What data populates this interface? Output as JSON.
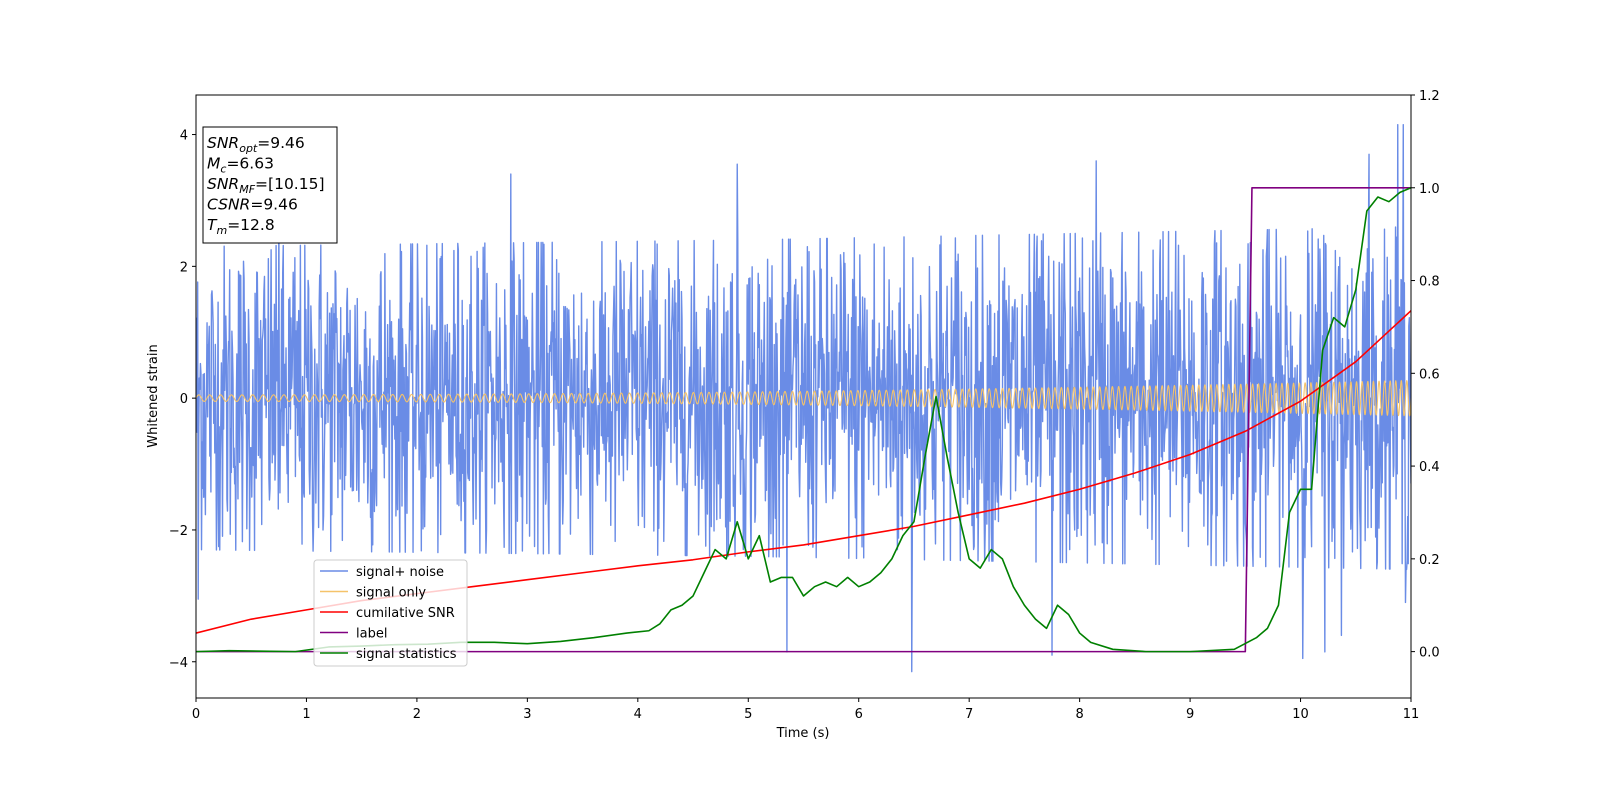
{
  "chart_data": {
    "type": "line",
    "xlabel": "Time (s)",
    "ylabel": "Whitened strain",
    "xlim": [
      0,
      11
    ],
    "ylim_left": [
      -4.55,
      4.6
    ],
    "ylim_right": [
      -0.1,
      1.2
    ],
    "x_ticks": [
      "0",
      "1",
      "2",
      "3",
      "4",
      "5",
      "6",
      "7",
      "8",
      "9",
      "10",
      "11"
    ],
    "y_ticks_left": [
      "−4",
      "−2",
      "0",
      "2",
      "4"
    ],
    "y_ticks_right": [
      "0.0",
      "0.2",
      "0.4",
      "0.6",
      "0.8",
      "1.0",
      "1.2"
    ],
    "grid": false,
    "legend_position": "lower-left",
    "info_box": [
      {
        "sym": "SNR",
        "sub": "opt",
        "val": "=9.46"
      },
      {
        "sym": "M",
        "sub": "c",
        "val": "=6.63"
      },
      {
        "sym": "SNR",
        "sub": "MF",
        "val": "=[10.15]"
      },
      {
        "sym": "CSNR",
        "sub": "",
        "val": "=9.46"
      },
      {
        "sym": "T",
        "sub": "m",
        "val": "=12.8"
      }
    ],
    "series": [
      {
        "name": "signal+ noise",
        "axis": "left",
        "color": "#6a8ce6",
        "kind": "noise",
        "x_range": [
          0,
          11
        ],
        "sample_count": 2200,
        "envelope": [
          [
            0,
            2.3
          ],
          [
            5,
            2.4
          ],
          [
            11,
            2.6
          ]
        ],
        "peaks": [
          {
            "x": 0.02,
            "y": -3.05
          },
          {
            "x": 0.75,
            "y": 3.05
          },
          {
            "x": 2.85,
            "y": 3.4
          },
          {
            "x": 4.9,
            "y": 3.55
          },
          {
            "x": 5.35,
            "y": -3.85
          },
          {
            "x": 6.48,
            "y": -4.15
          },
          {
            "x": 7.75,
            "y": -3.9
          },
          {
            "x": 8.15,
            "y": 3.6
          },
          {
            "x": 10.02,
            "y": -3.95
          },
          {
            "x": 10.22,
            "y": -3.85
          },
          {
            "x": 10.37,
            "y": -3.6
          },
          {
            "x": 10.62,
            "y": 3.7
          },
          {
            "x": 10.88,
            "y": 4.15
          },
          {
            "x": 10.93,
            "y": 4.15
          },
          {
            "x": 10.95,
            "y": -3.1
          }
        ]
      },
      {
        "name": "signal only",
        "axis": "left",
        "color": "#f5c36a",
        "kind": "chirp",
        "x_range": [
          0,
          11
        ],
        "amplitude_start": 0.05,
        "amplitude_end": 0.27,
        "frequency_start_hz": 10,
        "frequency_end_hz": 15
      },
      {
        "name": "cumilative SNR",
        "axis": "right",
        "color": "#ff0000",
        "x": [
          0,
          0.5,
          1,
          1.5,
          2,
          2.5,
          3,
          3.5,
          4,
          4.5,
          5,
          5.5,
          6,
          6.5,
          7,
          7.5,
          8,
          8.5,
          9,
          9.5,
          10,
          10.5,
          11
        ],
        "y": [
          0.04,
          0.07,
          0.09,
          0.11,
          0.125,
          0.14,
          0.155,
          0.17,
          0.185,
          0.198,
          0.215,
          0.23,
          0.25,
          0.27,
          0.295,
          0.32,
          0.35,
          0.385,
          0.425,
          0.475,
          0.54,
          0.625,
          0.735
        ]
      },
      {
        "name": "label",
        "axis": "right",
        "color": "#800080",
        "x": [
          0,
          9.5,
          9.56,
          11
        ],
        "y": [
          0,
          0,
          1,
          1
        ]
      },
      {
        "name": "signal statistics",
        "axis": "right",
        "color": "#008000",
        "x": [
          0,
          0.3,
          0.6,
          0.9,
          1.2,
          1.5,
          1.8,
          2.1,
          2.4,
          2.7,
          3.0,
          3.3,
          3.6,
          3.9,
          4.1,
          4.2,
          4.3,
          4.4,
          4.5,
          4.6,
          4.7,
          4.8,
          4.9,
          5.0,
          5.1,
          5.2,
          5.3,
          5.4,
          5.5,
          5.6,
          5.7,
          5.8,
          5.9,
          6.0,
          6.1,
          6.2,
          6.3,
          6.4,
          6.5,
          6.6,
          6.7,
          6.8,
          6.9,
          7.0,
          7.1,
          7.2,
          7.3,
          7.4,
          7.5,
          7.6,
          7.7,
          7.8,
          7.9,
          8.0,
          8.1,
          8.3,
          8.6,
          9.0,
          9.4,
          9.6,
          9.7,
          9.8,
          9.9,
          10.0,
          10.1,
          10.2,
          10.3,
          10.4,
          10.5,
          10.6,
          10.7,
          10.8,
          10.9,
          11.0
        ],
        "y": [
          0.0,
          0.002,
          0.001,
          0.0,
          0.01,
          0.012,
          0.015,
          0.016,
          0.02,
          0.02,
          0.017,
          0.022,
          0.03,
          0.04,
          0.045,
          0.06,
          0.09,
          0.1,
          0.12,
          0.17,
          0.22,
          0.2,
          0.28,
          0.2,
          0.25,
          0.15,
          0.16,
          0.16,
          0.12,
          0.14,
          0.15,
          0.14,
          0.16,
          0.14,
          0.15,
          0.17,
          0.2,
          0.25,
          0.28,
          0.42,
          0.55,
          0.42,
          0.3,
          0.2,
          0.18,
          0.22,
          0.2,
          0.14,
          0.1,
          0.07,
          0.05,
          0.1,
          0.08,
          0.04,
          0.02,
          0.005,
          0.0,
          0.0,
          0.005,
          0.03,
          0.05,
          0.1,
          0.3,
          0.35,
          0.35,
          0.65,
          0.72,
          0.7,
          0.78,
          0.95,
          0.98,
          0.97,
          0.99,
          1.0
        ]
      }
    ]
  }
}
